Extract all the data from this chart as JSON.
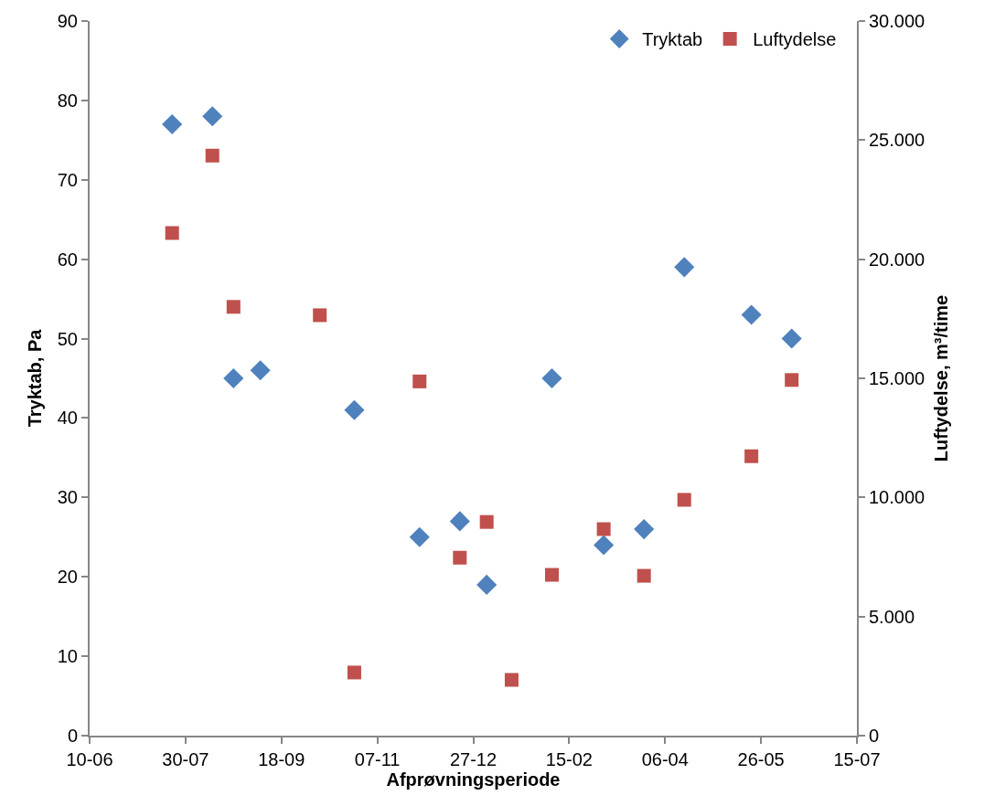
{
  "chart_data": {
    "type": "scatter",
    "xlabel": "Afprøvningsperiode",
    "ylabel": "Tryktab, Pa",
    "y2label": "Luftydelse, m³/time",
    "xlim": [
      "2010-06-10",
      "2011-07-15"
    ],
    "xticks": [
      {
        "value": "2010-06-10",
        "label": "10-06"
      },
      {
        "value": "2010-07-30",
        "label": "30-07"
      },
      {
        "value": "2010-09-18",
        "label": "18-09"
      },
      {
        "value": "2010-11-07",
        "label": "07-11"
      },
      {
        "value": "2010-12-27",
        "label": "27-12"
      },
      {
        "value": "2011-02-15",
        "label": "15-02"
      },
      {
        "value": "2011-04-06",
        "label": "06-04"
      },
      {
        "value": "2011-05-26",
        "label": "26-05"
      },
      {
        "value": "2011-07-15",
        "label": "15-07"
      }
    ],
    "ylim": [
      0,
      90
    ],
    "yticks": [
      0,
      10,
      20,
      30,
      40,
      50,
      60,
      70,
      80,
      90
    ],
    "y2lim": [
      0,
      30000
    ],
    "y2ticks": [
      0,
      {
        "value": 5000,
        "label": "5.000"
      },
      {
        "value": 10000,
        "label": "10.000"
      },
      {
        "value": 15000,
        "label": "15.000"
      },
      {
        "value": 20000,
        "label": "20.000"
      },
      {
        "value": 25000,
        "label": "25.000"
      },
      {
        "value": 30000,
        "label": "30.000"
      }
    ],
    "grid": false,
    "legend": "top right",
    "series": [
      {
        "name": "Tryktab",
        "color": "#4f81bd",
        "marker": "diamond",
        "x": [
          "2010-07-23",
          "2010-08-13",
          "2010-08-24",
          "2010-09-07",
          "2010-10-26",
          "2010-11-29",
          "2010-12-20",
          "2011-01-03",
          "2011-02-06",
          "2011-03-05",
          "2011-03-26",
          "2011-04-16",
          "2011-05-21",
          "2011-06-11"
        ],
        "values": [
          77,
          78,
          45,
          46,
          41,
          25,
          27,
          19,
          45,
          24,
          26,
          59,
          53,
          50
        ]
      },
      {
        "name": "Luftydelse",
        "color": "#c0504d",
        "marker": "square",
        "axis": "y2",
        "x": [
          "2010-07-23",
          "2010-08-13",
          "2010-08-24",
          "2010-10-08",
          "2010-10-26",
          "2010-11-29",
          "2010-12-20",
          "2011-01-03",
          "2011-01-16",
          "2011-02-06",
          "2011-03-05",
          "2011-03-26",
          "2011-04-16",
          "2011-05-21",
          "2011-06-11"
        ],
        "values": [
          21100,
          24350,
          18000,
          17650,
          2650,
          14870,
          7470,
          8970,
          2340,
          6750,
          8670,
          6710,
          9900,
          11730,
          14930
        ]
      }
    ]
  }
}
